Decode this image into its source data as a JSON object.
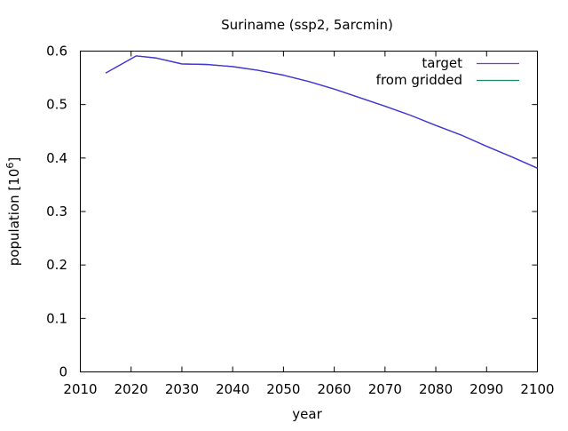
{
  "chart_data": {
    "type": "line",
    "title": "Suriname (ssp2, 5arcmin)",
    "xlabel": "year",
    "ylabel_main": "population [10",
    "ylabel_exp": "6",
    "ylabel_close": "]",
    "xlim": [
      2010,
      2100
    ],
    "ylim": [
      0,
      0.6
    ],
    "xticks": [
      "2010",
      "2020",
      "2030",
      "2040",
      "2050",
      "2060",
      "2070",
      "2080",
      "2090",
      "2100"
    ],
    "yticks": [
      "0",
      "0.1",
      "0.2",
      "0.3",
      "0.4",
      "0.5",
      "0.6"
    ],
    "grid": false,
    "legend_position": "top-right",
    "x": [
      2015,
      2021,
      2025,
      2030,
      2035,
      2040,
      2045,
      2050,
      2055,
      2060,
      2065,
      2070,
      2075,
      2080,
      2085,
      2090,
      2095,
      2100
    ],
    "series": [
      {
        "name": "target",
        "color": "#8b2be2",
        "values": [
          0.559,
          0.591,
          0.587,
          0.576,
          0.575,
          0.571,
          0.564,
          0.555,
          0.543,
          0.529,
          0.513,
          0.497,
          0.48,
          0.461,
          0.443,
          0.422,
          0.402,
          0.381
        ]
      },
      {
        "name": "from gridded",
        "color": "#1a8a66",
        "values": [
          0.559,
          0.591,
          0.587,
          0.576,
          0.575,
          0.571,
          0.564,
          0.555,
          0.543,
          0.529,
          0.513,
          0.497,
          0.48,
          0.461,
          0.443,
          0.422,
          0.402,
          0.381
        ]
      }
    ],
    "overlap_color": "#3a3ad0"
  }
}
